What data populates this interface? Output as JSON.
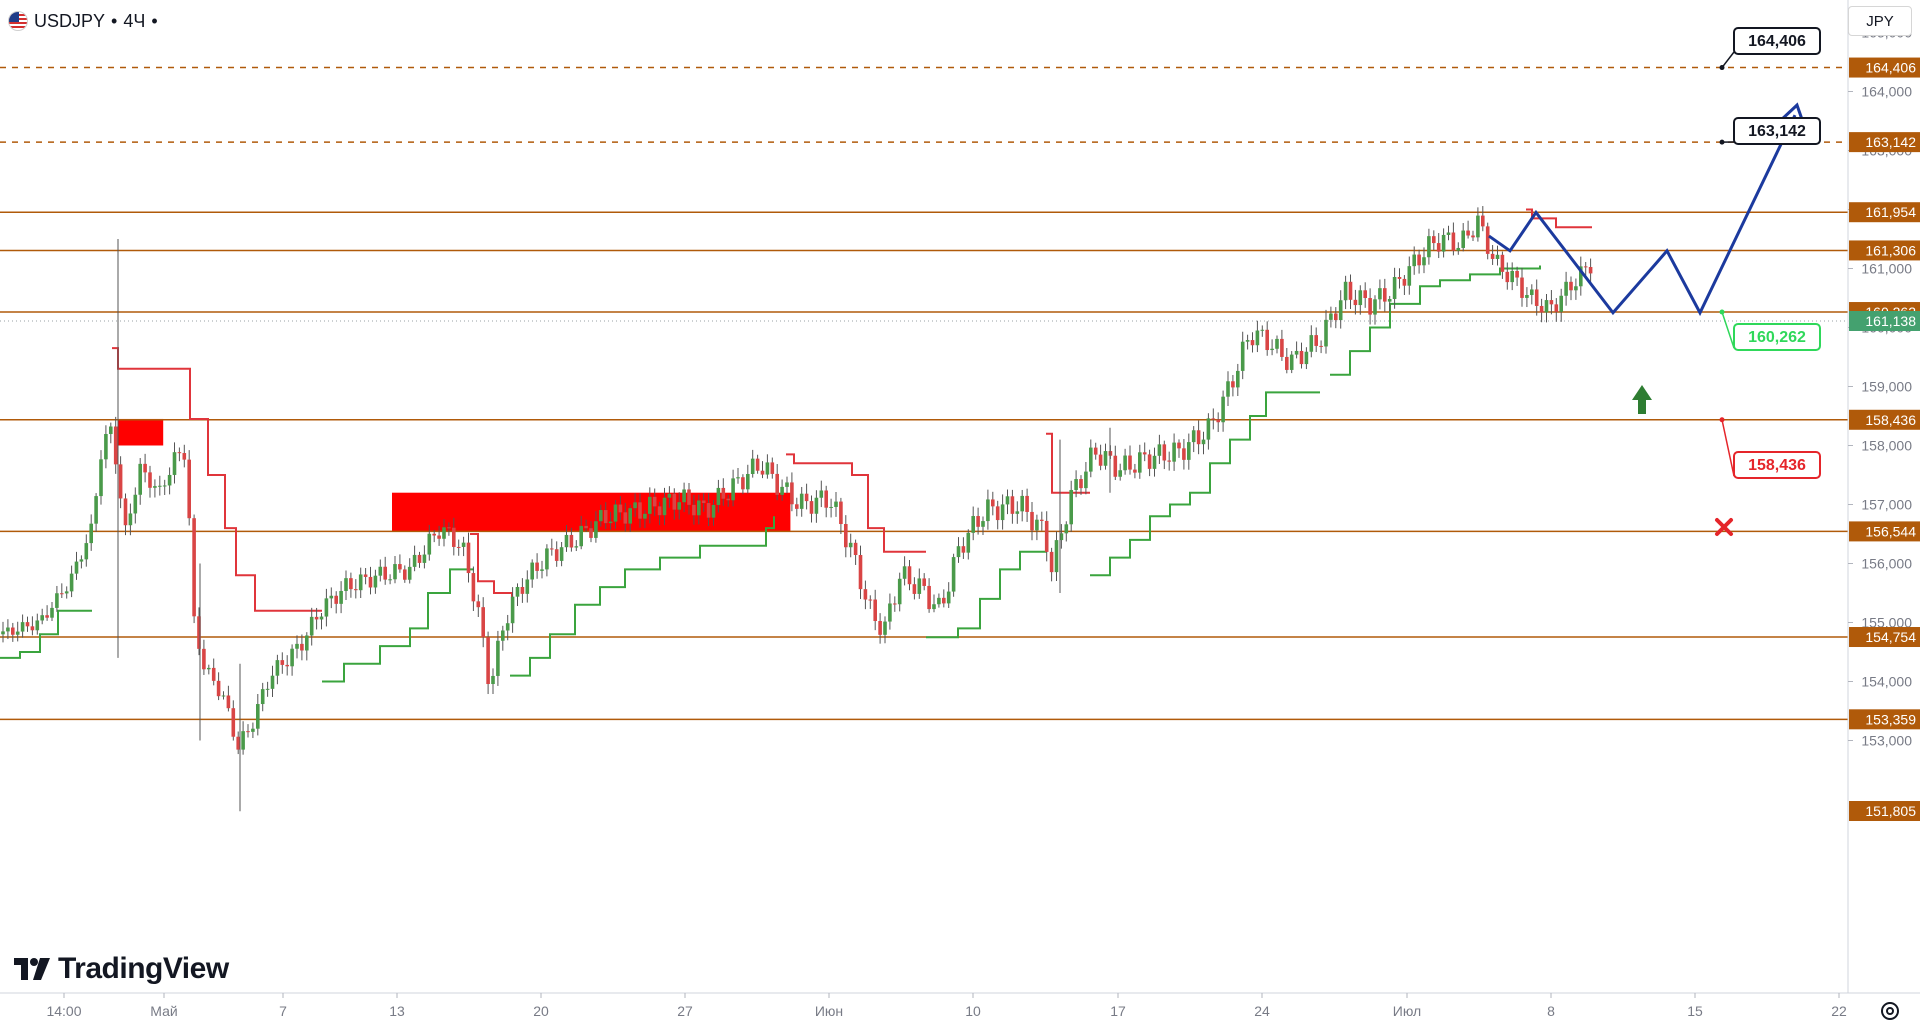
{
  "header": {
    "symbol": "USDJPY",
    "interval": "4Ч",
    "separator": "•"
  },
  "currency_button": {
    "label": "JPY"
  },
  "brand": {
    "name": "TradingView"
  },
  "icons": {
    "flag": "us-flag-icon",
    "logo": "tradingview-logo-icon",
    "settings": "gear-icon"
  },
  "colors": {
    "level_line": "#b05a0a",
    "level_label_bg": "#b05a0a",
    "price_label_bg": "#44a16f",
    "projection": "#1c3a9e",
    "stop_red": "#e5252a",
    "target_green": "#2fd85a",
    "long_arrow": "#2e7d32",
    "bull_body": "#4a9a4a",
    "bear_body": "#d94545",
    "trail_up": "#3aa43e",
    "trail_down": "#e0353b",
    "supply_zone": "#ff0000"
  },
  "chart_data": {
    "type": "candlestick",
    "symbol": "USDJPY",
    "timeframe": "4H",
    "x_ticks": [
      "14:00",
      "Май",
      "7",
      "13",
      "20",
      "27",
      "Июн",
      "10",
      "17",
      "24",
      "Июл",
      "8",
      "15",
      "22"
    ],
    "y_ticks": [
      "165,000",
      "164,000",
      "163,000",
      "162,000",
      "161,000",
      "160,000",
      "159,000",
      "158,000",
      "157,000",
      "156,000",
      "155,000",
      "154,000",
      "153,000"
    ],
    "ylim": [
      151.6,
      165.6
    ],
    "current_price": "161,138",
    "levels": [
      {
        "value": 164.406,
        "label": "164,406",
        "style": "dashed"
      },
      {
        "value": 163.142,
        "label": "163,142",
        "style": "dashed"
      },
      {
        "value": 161.954,
        "label": "161,954",
        "style": "solid"
      },
      {
        "value": 161.306,
        "label": "161,306",
        "style": "solid"
      },
      {
        "value": 160.262,
        "label": "160,262",
        "style": "solid"
      },
      {
        "value": 158.436,
        "label": "158,436",
        "style": "solid"
      },
      {
        "value": 156.544,
        "label": "156,544",
        "style": "solid"
      },
      {
        "value": 154.754,
        "label": "154,754",
        "style": "solid"
      },
      {
        "value": 153.359,
        "label": "153,359",
        "style": "solid"
      },
      {
        "value": 151.805,
        "label": "151,805",
        "style": "axis"
      }
    ],
    "annotations": [
      {
        "label": "164,406",
        "kind": "target"
      },
      {
        "label": "163,142",
        "kind": "target"
      },
      {
        "label": "160,262",
        "kind": "entry"
      },
      {
        "label": "158,436",
        "kind": "stop"
      }
    ],
    "supply_zones": [
      {
        "from": "May 1",
        "to": "May 2",
        "low": 158.0,
        "high": 158.45
      },
      {
        "from": "May 15",
        "to": "Jun 3",
        "low": 156.55,
        "high": 157.2
      }
    ],
    "projection_path": [
      {
        "t": "Jul 3",
        "price": 161.55
      },
      {
        "t": "Jul 4",
        "price": 161.3
      },
      {
        "t": "Jul 5",
        "price": 161.95
      },
      {
        "t": "Jul 8",
        "price": 160.25
      },
      {
        "t": "Jul 10",
        "price": 161.3
      },
      {
        "t": "Jul 12",
        "price": 160.25
      },
      {
        "t": "Jul 18",
        "price": 163.6
      }
    ]
  }
}
